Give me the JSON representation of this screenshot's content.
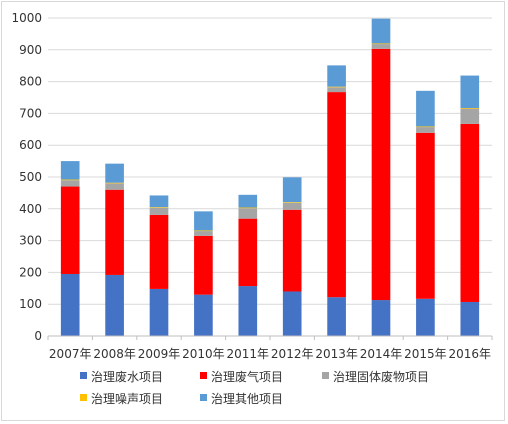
{
  "chart_data": {
    "type": "bar",
    "stacked": true,
    "categories": [
      "2007年",
      "2008年",
      "2009年",
      "2010年",
      "2011年",
      "2012年",
      "2013年",
      "2014年",
      "2015年",
      "2016年"
    ],
    "series": [
      {
        "name": "治理废水项目",
        "color": "#4472c4",
        "values": [
          195,
          192,
          148,
          130,
          157,
          140,
          122,
          113,
          117,
          107
        ]
      },
      {
        "name": "治理废气项目",
        "color": "#ff0000",
        "values": [
          275,
          268,
          233,
          185,
          212,
          257,
          645,
          790,
          522,
          560
        ]
      },
      {
        "name": "治理固体废物项目",
        "color": "#a5a5a5",
        "values": [
          20,
          20,
          22,
          15,
          33,
          22,
          15,
          15,
          18,
          48
        ]
      },
      {
        "name": "治理噪声项目",
        "color": "#ffc000",
        "values": [
          2,
          2,
          2,
          2,
          2,
          2,
          2,
          2,
          2,
          2
        ]
      },
      {
        "name": "治理其他项目",
        "color": "#5b9bd5",
        "values": [
          58,
          60,
          37,
          60,
          40,
          78,
          67,
          78,
          112,
          102
        ]
      }
    ],
    "yticks": [
      0,
      100,
      200,
      300,
      400,
      500,
      600,
      700,
      800,
      900,
      1000
    ],
    "ylim": [
      0,
      1000
    ],
    "grid": true,
    "legend_position": "bottom"
  }
}
